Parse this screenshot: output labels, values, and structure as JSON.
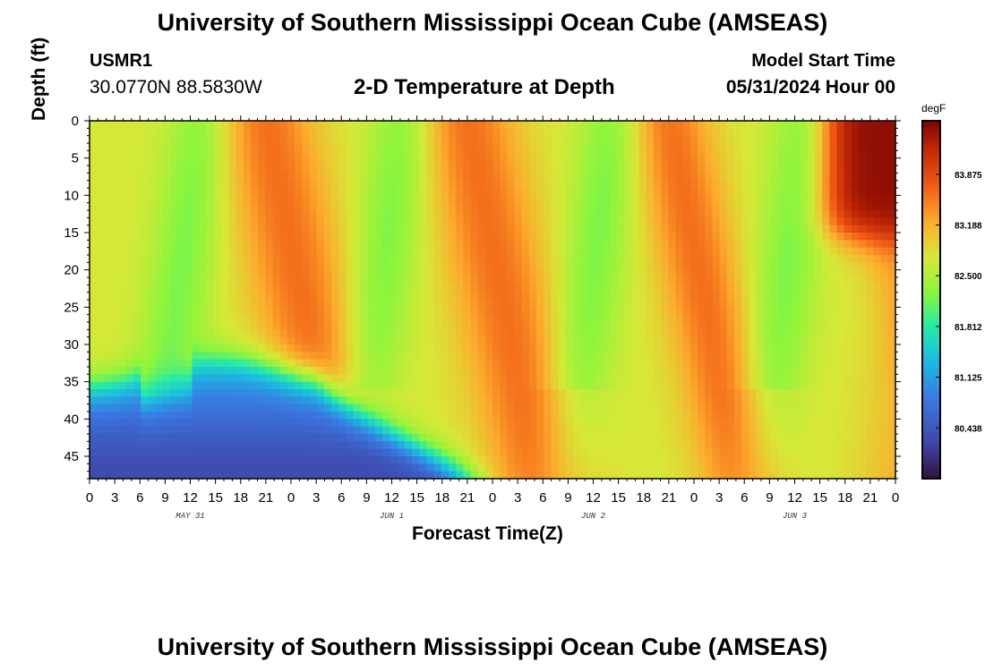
{
  "header": {
    "title_top": "University of Southern Mississippi Ocean Cube (AMSEAS)",
    "station": "USMR1",
    "coords": "30.0770N  88.5830W",
    "subtitle": "2-D Temperature at Depth",
    "model_start_label": "Model Start Time",
    "model_start_value": "05/31/2024 Hour 00"
  },
  "footer": {
    "title_bottom": "University of Southern Mississippi Ocean Cube (AMSEAS)"
  },
  "chart_data": {
    "type": "heatmap",
    "title": "2-D Temperature at Depth",
    "xlabel": "Forecast Time(Z)",
    "ylabel": "Depth (ft)",
    "units": "degF",
    "x_range_hours": [
      0,
      96
    ],
    "y_range_ft": [
      0,
      48
    ],
    "x_tick_labels": [
      "0",
      "3",
      "6",
      "9",
      "12",
      "15",
      "18",
      "21",
      "0",
      "3",
      "6",
      "9",
      "12",
      "15",
      "18",
      "21",
      "0",
      "3",
      "6",
      "9",
      "12",
      "15",
      "18",
      "21",
      "0",
      "3",
      "6",
      "9",
      "12",
      "15",
      "18",
      "21",
      "0"
    ],
    "y_tick_values": [
      0,
      5,
      10,
      15,
      20,
      25,
      30,
      35,
      40,
      45
    ],
    "date_labels": [
      {
        "text": "MAY 31",
        "hour": 12
      },
      {
        "text": "JUN 1",
        "hour": 36
      },
      {
        "text": "JUN 2",
        "hour": 60
      },
      {
        "text": "JUN 3",
        "hour": 84
      }
    ],
    "colorbar": {
      "min": 79.75,
      "max": 84.6,
      "tick_values": [
        80.438,
        81.125,
        81.812,
        82.5,
        83.188,
        83.875
      ],
      "tick_labels": [
        "80.438",
        "81.125",
        "81.812",
        "82.500",
        "83.188",
        "83.875"
      ]
    },
    "field": {
      "base": 82.75,
      "warm_bands_hours": [
        [
          21,
          6
        ],
        [
          45,
          6
        ],
        [
          69,
          5
        ],
        [
          93,
          4
        ]
      ],
      "cool_bands_hours": [
        [
          11,
          4
        ],
        [
          35,
          4
        ],
        [
          60,
          4
        ],
        [
          83,
          4
        ]
      ],
      "cold_bottom_layer": {
        "top_depth_ft": 36,
        "end_hour": 47
      },
      "hot_surface_corner": {
        "start_hour": 88,
        "bottom_depth_ft": 16
      }
    }
  }
}
